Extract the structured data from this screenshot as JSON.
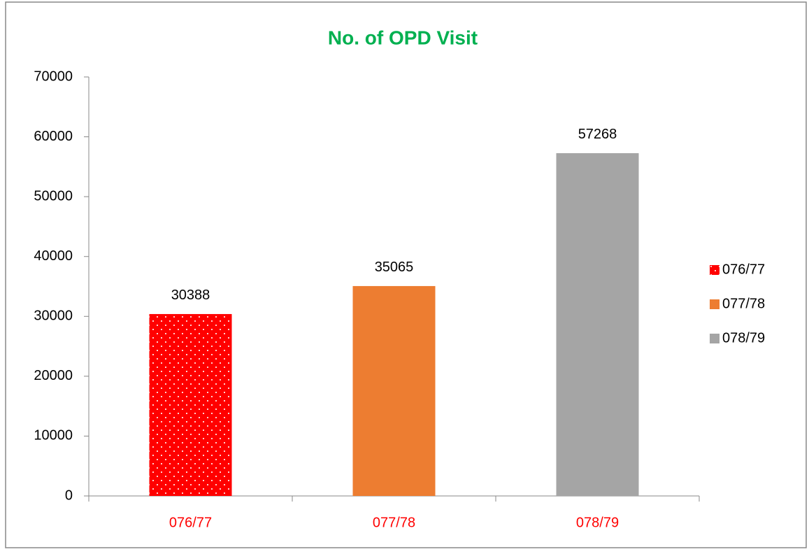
{
  "chart_data": {
    "type": "bar",
    "title": "No. of OPD Visit",
    "categories": [
      "076/77",
      "077/78",
      "078/79"
    ],
    "values": [
      30388,
      35065,
      57268
    ],
    "colors": [
      "#FF0000",
      "#ED7D31",
      "#A5A5A5"
    ],
    "patterns": [
      "dotted",
      "solid",
      "solid"
    ],
    "ylim": [
      0,
      70000
    ],
    "yticks": [
      0,
      10000,
      20000,
      30000,
      40000,
      50000,
      60000,
      70000
    ],
    "grid": false,
    "legend": "right"
  }
}
